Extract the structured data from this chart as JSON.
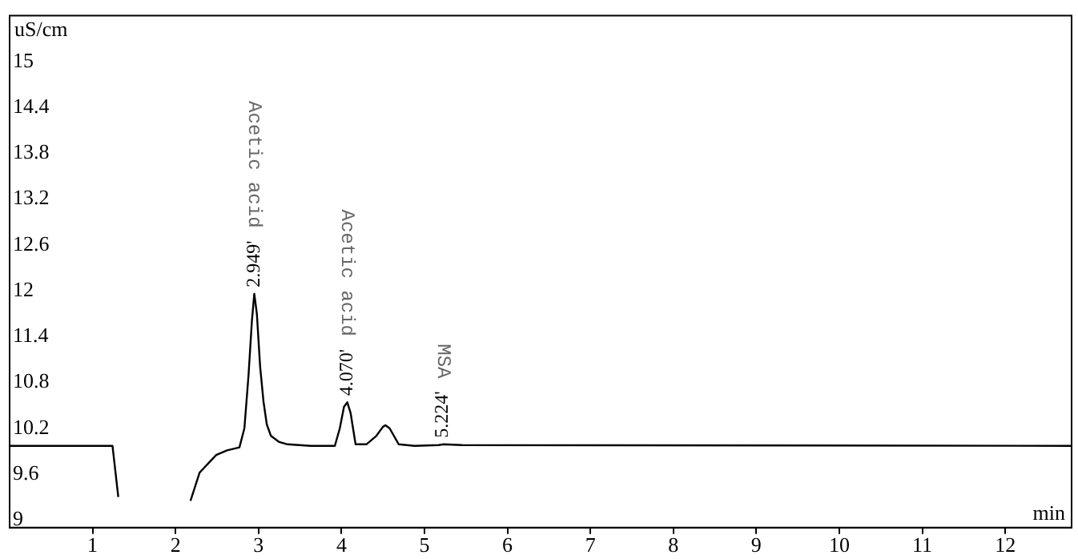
{
  "chart_data": {
    "type": "line",
    "xlabel": "min",
    "ylabel": "uS/cm",
    "xlim": [
      0,
      12.8
    ],
    "ylim": [
      8.9,
      15.6
    ],
    "xticks": [
      1,
      2,
      3,
      4,
      5,
      6,
      7,
      8,
      9,
      10,
      11,
      12
    ],
    "yticks": [
      9,
      9.6,
      10.2,
      10.8,
      11.4,
      12,
      12.6,
      13.2,
      13.8,
      14.4,
      15
    ],
    "grid": false,
    "legend": false,
    "marker": "none",
    "line_style": "solid",
    "series": [
      {
        "color": "#000000",
        "x": [
          0,
          1.24,
          1.31,
          1.34,
          2.15,
          2.18,
          2.29,
          2.49,
          2.62,
          2.77,
          2.83,
          2.88,
          2.92,
          2.949,
          2.98,
          3.02,
          3.06,
          3.1,
          3.15,
          3.25,
          3.35,
          3.63,
          3.92,
          3.98,
          4.03,
          4.07,
          4.11,
          4.17,
          4.3,
          4.42,
          4.5,
          4.53,
          4.58,
          4.69,
          4.88,
          5.17,
          5.224,
          5.45,
          12.8
        ],
        "values": [
          9.97,
          9.97,
          9.3,
          null,
          null,
          9.25,
          9.62,
          9.85,
          9.91,
          9.95,
          10.2,
          10.9,
          11.6,
          11.96,
          11.7,
          11.0,
          10.55,
          10.25,
          10.1,
          10.02,
          9.99,
          9.97,
          9.97,
          10.2,
          10.48,
          10.54,
          10.4,
          9.99,
          9.99,
          10.1,
          10.22,
          10.24,
          10.2,
          9.99,
          9.97,
          9.98,
          9.99,
          9.98,
          9.97
        ]
      }
    ],
    "annotations": [
      {
        "text": "2.949'",
        "x": 2.949,
        "y": 11.96
      },
      "Acetic acid",
      {
        "text": "4.070'",
        "x": 4.07,
        "y": 10.54
      },
      "Acetic acid",
      {
        "text": "5.224'",
        "x": 5.224,
        "y": 9.99
      },
      "MSA"
    ]
  }
}
